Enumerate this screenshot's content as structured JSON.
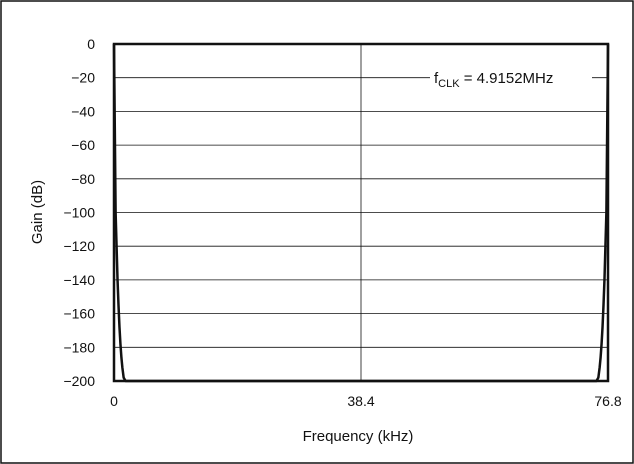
{
  "chart_data": {
    "type": "line",
    "title": "",
    "xlabel": "Frequency (kHz)",
    "ylabel": "Gain (dB)",
    "annotation_prefix": "f",
    "annotation_sub": "CLK",
    "annotation_suffix": " = 4.9152MHz",
    "xlim": [
      0,
      76.8
    ],
    "ylim": [
      -200,
      0
    ],
    "x_ticks": [
      0,
      38.4,
      76.8
    ],
    "x_tick_labels": [
      "0",
      "38.4",
      "76.8"
    ],
    "y_ticks": [
      0,
      -20,
      -40,
      -60,
      -80,
      -100,
      -120,
      -140,
      -160,
      -180,
      -200
    ],
    "y_tick_labels": [
      "0",
      "−20",
      "−40",
      "−60",
      "−80",
      "−100",
      "−120",
      "−140",
      "−160",
      "−180",
      "−200"
    ],
    "grid": true,
    "series": [
      {
        "x": [
          0,
          0.1,
          0.25,
          0.4,
          0.55,
          0.7,
          0.85,
          1.0,
          1.15,
          1.3,
          1.5,
          1.8,
          2.2,
          74.6,
          75.0,
          75.3,
          75.5,
          75.65,
          75.8,
          75.95,
          76.1,
          76.25,
          76.4,
          76.55,
          76.7,
          76.8
        ],
        "y": [
          0,
          -40,
          -100,
          -120,
          -140,
          -155,
          -168,
          -178,
          -186,
          -192,
          -198,
          -200,
          -200,
          -200,
          -200,
          -198,
          -192,
          -186,
          -178,
          -168,
          -155,
          -140,
          -120,
          -100,
          -40,
          0
        ]
      }
    ]
  }
}
